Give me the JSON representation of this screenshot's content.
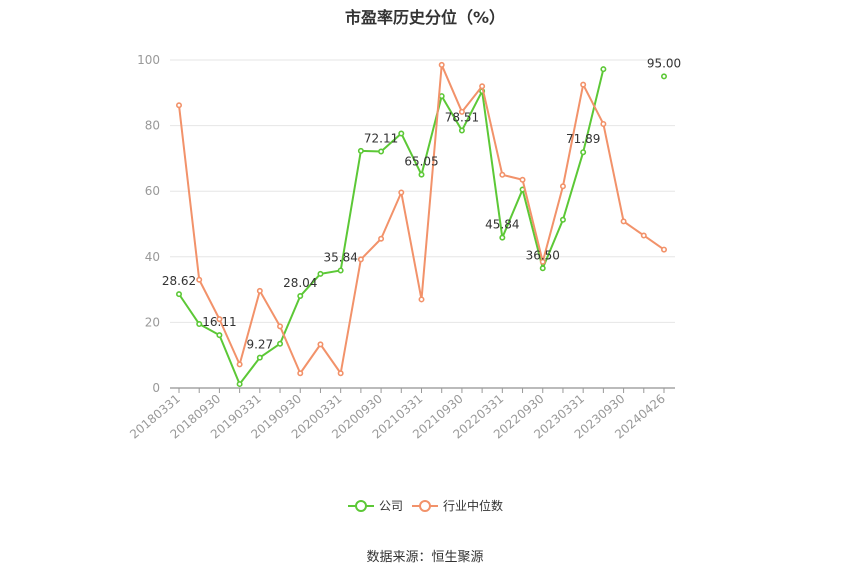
{
  "title": "市盈率历史分位（%）",
  "source": "数据来源：恒生聚源",
  "colors": {
    "company": "#5cc836",
    "industry": "#f2926a",
    "axis": "#999999",
    "grid": "#e6e6e6"
  },
  "chart_data": {
    "type": "line",
    "title": "市盈率历史分位（%）",
    "ylim": [
      0,
      100
    ],
    "yticks": [
      0,
      20,
      40,
      60,
      80,
      100
    ],
    "grid": true,
    "legend_position": "bottom",
    "x_labels": [
      "20180331",
      "20180930",
      "20190331",
      "20190930",
      "20200331",
      "20200930",
      "20210331",
      "20210930",
      "20220331",
      "20220930",
      "20230331",
      "20230930",
      "20240426"
    ],
    "x": [
      "20180331",
      "20180630",
      "20180930",
      "20181231",
      "20190331",
      "20190630",
      "20190930",
      "20191231",
      "20200331",
      "20200630",
      "20200930",
      "20201231",
      "20210331",
      "20210630",
      "20210930",
      "20211231",
      "20220331",
      "20220630",
      "20220930",
      "20221231",
      "20230331",
      "20230630",
      "20230930",
      "20231231",
      "20240426"
    ],
    "series": [
      {
        "name": "公司",
        "color": "#5cc836",
        "values": [
          28.62,
          19.5,
          16.11,
          1.2,
          9.27,
          13.5,
          28.04,
          34.8,
          35.84,
          72.3,
          72.11,
          77.6,
          65.05,
          89.0,
          78.51,
          90.5,
          45.84,
          60.5,
          36.5,
          51.3,
          71.89,
          97.2,
          null,
          null,
          95.0
        ],
        "labels": [
          {
            "index": 0,
            "text": "28.62"
          },
          {
            "index": 2,
            "text": "16.11"
          },
          {
            "index": 4,
            "text": "9.27"
          },
          {
            "index": 6,
            "text": "28.04"
          },
          {
            "index": 8,
            "text": "35.84"
          },
          {
            "index": 10,
            "text": "72.11"
          },
          {
            "index": 12,
            "text": "65.05"
          },
          {
            "index": 14,
            "text": "78.51"
          },
          {
            "index": 16,
            "text": "45.84"
          },
          {
            "index": 18,
            "text": "36.50"
          },
          {
            "index": 20,
            "text": "71.89"
          },
          {
            "index": 24,
            "text": "95.00"
          }
        ]
      },
      {
        "name": "行业中位数",
        "color": "#f2926a",
        "values": [
          86.2,
          33.0,
          21.0,
          7.2,
          29.6,
          18.8,
          4.5,
          13.3,
          4.5,
          39.2,
          45.5,
          59.6,
          27.0,
          98.5,
          84.2,
          92.0,
          65.0,
          63.5,
          38.5,
          61.5,
          92.5,
          80.5,
          50.8,
          46.5,
          42.2
        ]
      }
    ]
  }
}
